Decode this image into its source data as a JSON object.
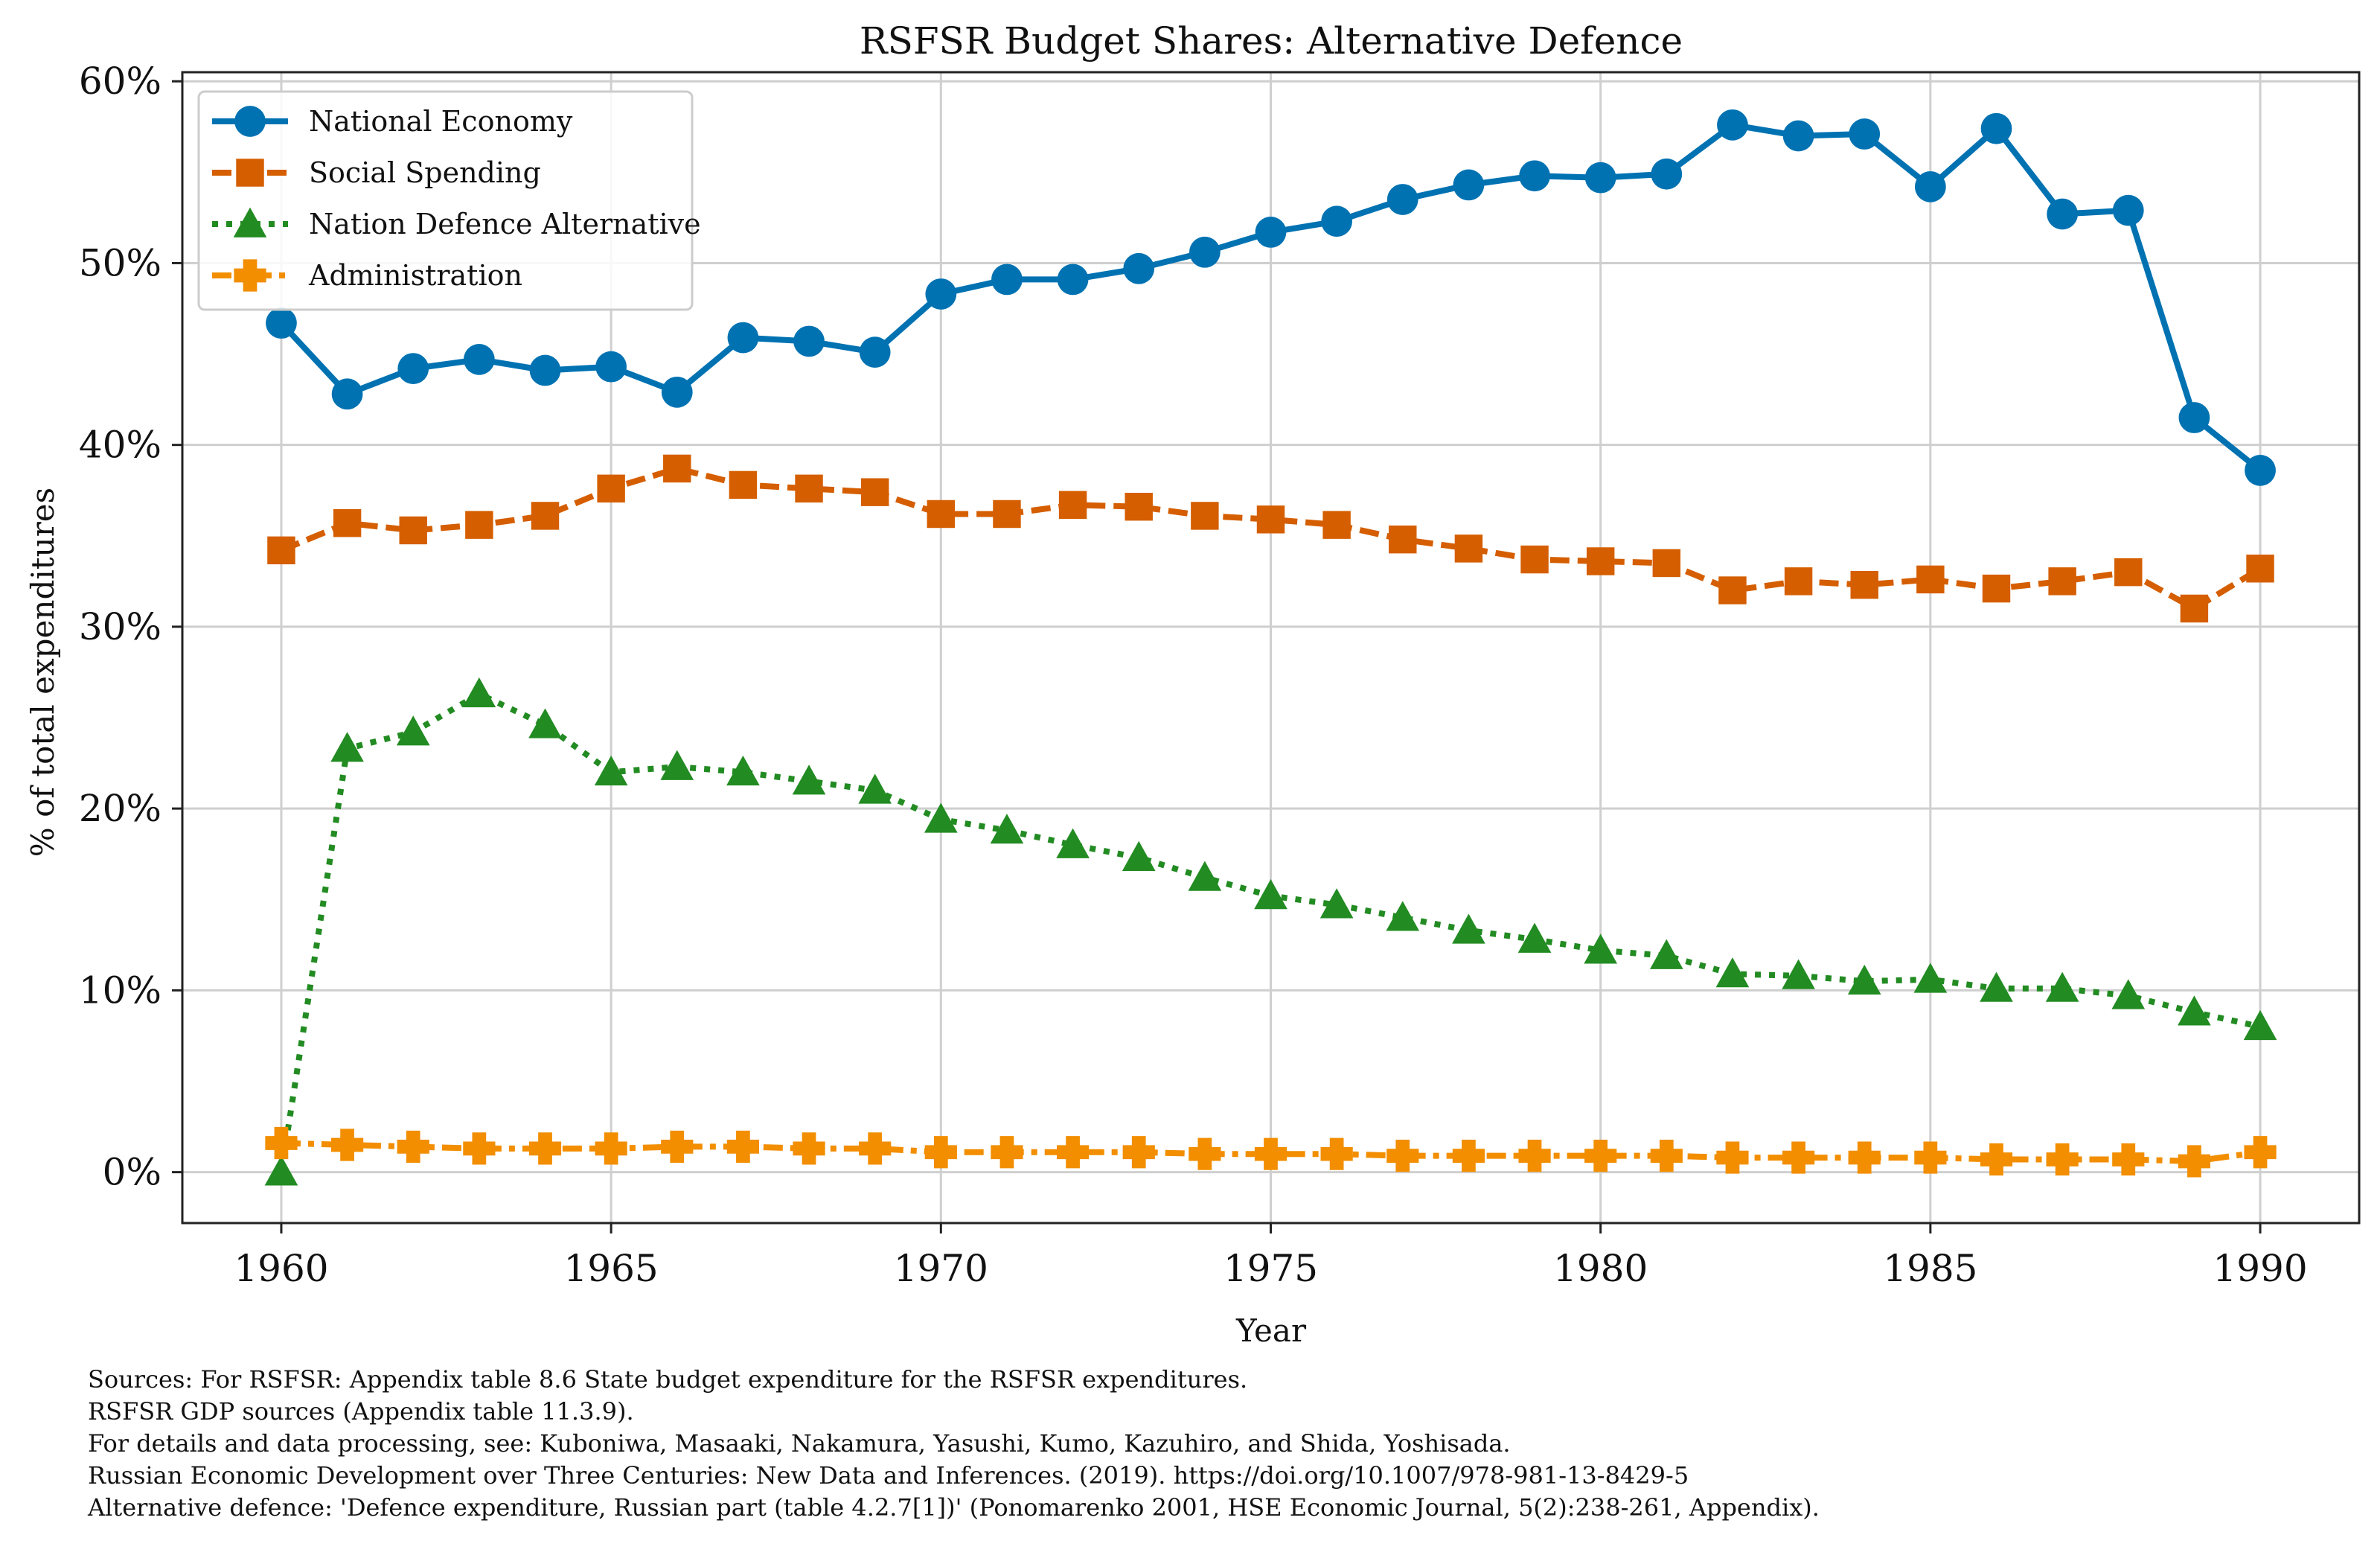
{
  "chart_data": {
    "type": "line",
    "title": "RSFSR Budget Shares: Alternative Defence",
    "xlabel": "Year",
    "ylabel": "% of total expenditures",
    "xlim": [
      1958.5,
      1991.5
    ],
    "ylim": [
      -2.8,
      60.5
    ],
    "x_ticks": [
      1960,
      1965,
      1970,
      1975,
      1980,
      1985,
      1990
    ],
    "y_ticks": [
      0,
      10,
      20,
      30,
      40,
      50,
      60
    ],
    "y_tick_labels": [
      "0%",
      "10%",
      "20%",
      "30%",
      "40%",
      "50%",
      "60%"
    ],
    "grid": true,
    "legend_position": "top-left",
    "x": [
      1960,
      1961,
      1962,
      1963,
      1964,
      1965,
      1966,
      1967,
      1968,
      1969,
      1970,
      1971,
      1972,
      1973,
      1974,
      1975,
      1976,
      1977,
      1978,
      1979,
      1980,
      1981,
      1982,
      1983,
      1984,
      1985,
      1986,
      1987,
      1988,
      1989,
      1990
    ],
    "series": [
      {
        "name": "National Economy",
        "color": "#0072b2",
        "line": "solid",
        "marker": "circle",
        "values": [
          46.7,
          42.8,
          44.2,
          44.7,
          44.1,
          44.3,
          42.9,
          45.9,
          45.7,
          45.1,
          48.3,
          49.1,
          49.1,
          49.7,
          50.6,
          51.7,
          52.3,
          53.5,
          54.3,
          54.8,
          54.7,
          54.9,
          57.6,
          57.0,
          57.1,
          54.2,
          57.4,
          52.7,
          52.9,
          41.5,
          38.6
        ]
      },
      {
        "name": "Social Spending",
        "color": "#d55e00",
        "line": "dashed",
        "marker": "square",
        "values": [
          34.2,
          35.7,
          35.3,
          35.6,
          36.1,
          37.6,
          38.7,
          37.8,
          37.6,
          37.4,
          36.2,
          36.2,
          36.7,
          36.6,
          36.1,
          35.9,
          35.6,
          34.8,
          34.3,
          33.7,
          33.6,
          33.5,
          32.0,
          32.5,
          32.3,
          32.6,
          32.1,
          32.5,
          33.0,
          31.0,
          33.2
        ]
      },
      {
        "name": "Nation Defence Alternative",
        "color": "#228b22",
        "line": "dotted",
        "marker": "triangle",
        "values": [
          0.0,
          23.3,
          24.2,
          26.3,
          24.6,
          22.0,
          22.3,
          22.0,
          21.5,
          21.0,
          19.4,
          18.8,
          18.0,
          17.3,
          16.2,
          15.2,
          14.7,
          14.0,
          13.3,
          12.8,
          12.2,
          11.9,
          10.9,
          10.8,
          10.5,
          10.6,
          10.1,
          10.1,
          9.7,
          8.8,
          8.0
        ]
      },
      {
        "name": "Administration",
        "color": "#f28e00",
        "line": "dashdot",
        "marker": "plus",
        "values": [
          1.6,
          1.5,
          1.4,
          1.3,
          1.3,
          1.3,
          1.4,
          1.4,
          1.3,
          1.3,
          1.1,
          1.1,
          1.1,
          1.1,
          1.0,
          1.0,
          1.0,
          0.9,
          0.9,
          0.9,
          0.9,
          0.9,
          0.8,
          0.8,
          0.8,
          0.8,
          0.7,
          0.7,
          0.7,
          0.6,
          1.1
        ]
      }
    ]
  },
  "sources": [
    "Sources: For RSFSR: Appendix table 8.6 State budget expenditure for the RSFSR expenditures.",
    "RSFSR GDP sources (Appendix table 11.3.9).",
    "For details and data processing, see: Kuboniwa, Masaaki, Nakamura, Yasushi, Kumo, Kazuhiro, and Shida, Yoshisada.",
    "Russian Economic Development over Three Centuries: New Data and Inferences. (2019). https://doi.org/10.1007/978-981-13-8429-5",
    "Alternative defence: 'Defence expenditure, Russian part (table 4.2.7[1])' (Ponomarenko 2001, HSE Economic Journal, 5(2):238-261, Appendix)."
  ]
}
